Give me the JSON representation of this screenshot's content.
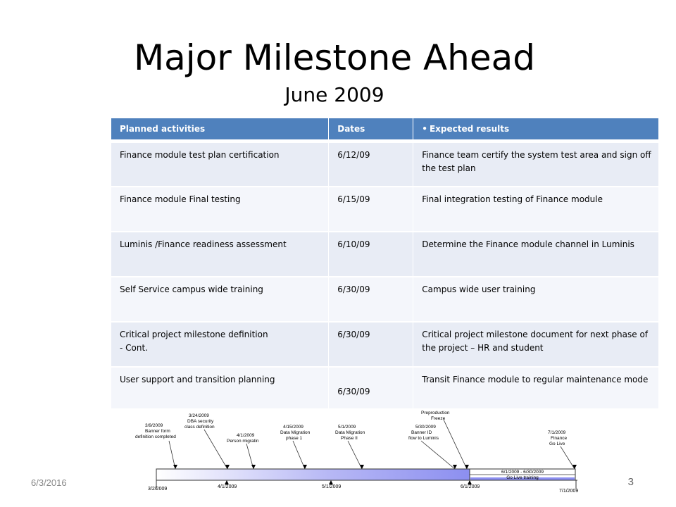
{
  "title": "Major Milestone Ahead",
  "subtitle": "June 2009",
  "table": {
    "headers": [
      "Planned activities",
      "Dates",
      "Expected results"
    ],
    "rows": [
      {
        "activity": "Finance module test plan certification",
        "date": "6/12/09",
        "result": "Finance team certify the system test area and sign off the test plan"
      },
      {
        "activity": "Finance module Final testing",
        "date": "6/15/09",
        "result": "Final integration testing of Finance module"
      },
      {
        "activity": "Luminis /Finance readiness assessment",
        "date": "6/10/09",
        "result": "Determine the Finance module channel in Luminis"
      },
      {
        "activity": "Self Service campus wide training",
        "date": "6/30/09",
        "result": "Campus wide user training"
      },
      {
        "activity": "Critical project milestone definition",
        "activity_line2": "- Cont.",
        "date": "6/30/09",
        "result": "Critical project milestone document for next phase of the project – HR and student"
      },
      {
        "activity": "User support and transition planning",
        "date": "6/30/09",
        "result": "Transit Finance module to regular maintenance mode"
      }
    ]
  },
  "timeline": {
    "axis_labels": [
      "3/2/2009",
      "4/1/2009",
      "5/1/2009",
      "6/1/2009",
      "7/1/2009"
    ],
    "milestones": [
      {
        "date": "3/9/2009",
        "label": "Banner form definition completed"
      },
      {
        "date": "3/24/2009",
        "label": "DBA security class definition"
      },
      {
        "date": "4/1/2009",
        "label": "Person migratin"
      },
      {
        "date": "4/15/2009",
        "label": "Data Migration phase 1"
      },
      {
        "date": "5/1/2009",
        "label": "Data Migration Phase II"
      },
      {
        "date": "5/30/2009",
        "label": "Banner ID flow to Luminis"
      },
      {
        "label": "Preproduction Freeze"
      },
      {
        "date": "7/1/2009",
        "label": "Finance Go Live"
      }
    ],
    "span": {
      "range": "6/1/2009 - 6/30/2009",
      "label": "Go Live training"
    }
  },
  "footer": {
    "date": "6/3/2016",
    "page": "3"
  },
  "colors": {
    "header": "#4f81bd",
    "row_odd": "#e8ecf5",
    "row_even": "#f4f6fb",
    "timeline_bar": "#8c8ff0"
  }
}
